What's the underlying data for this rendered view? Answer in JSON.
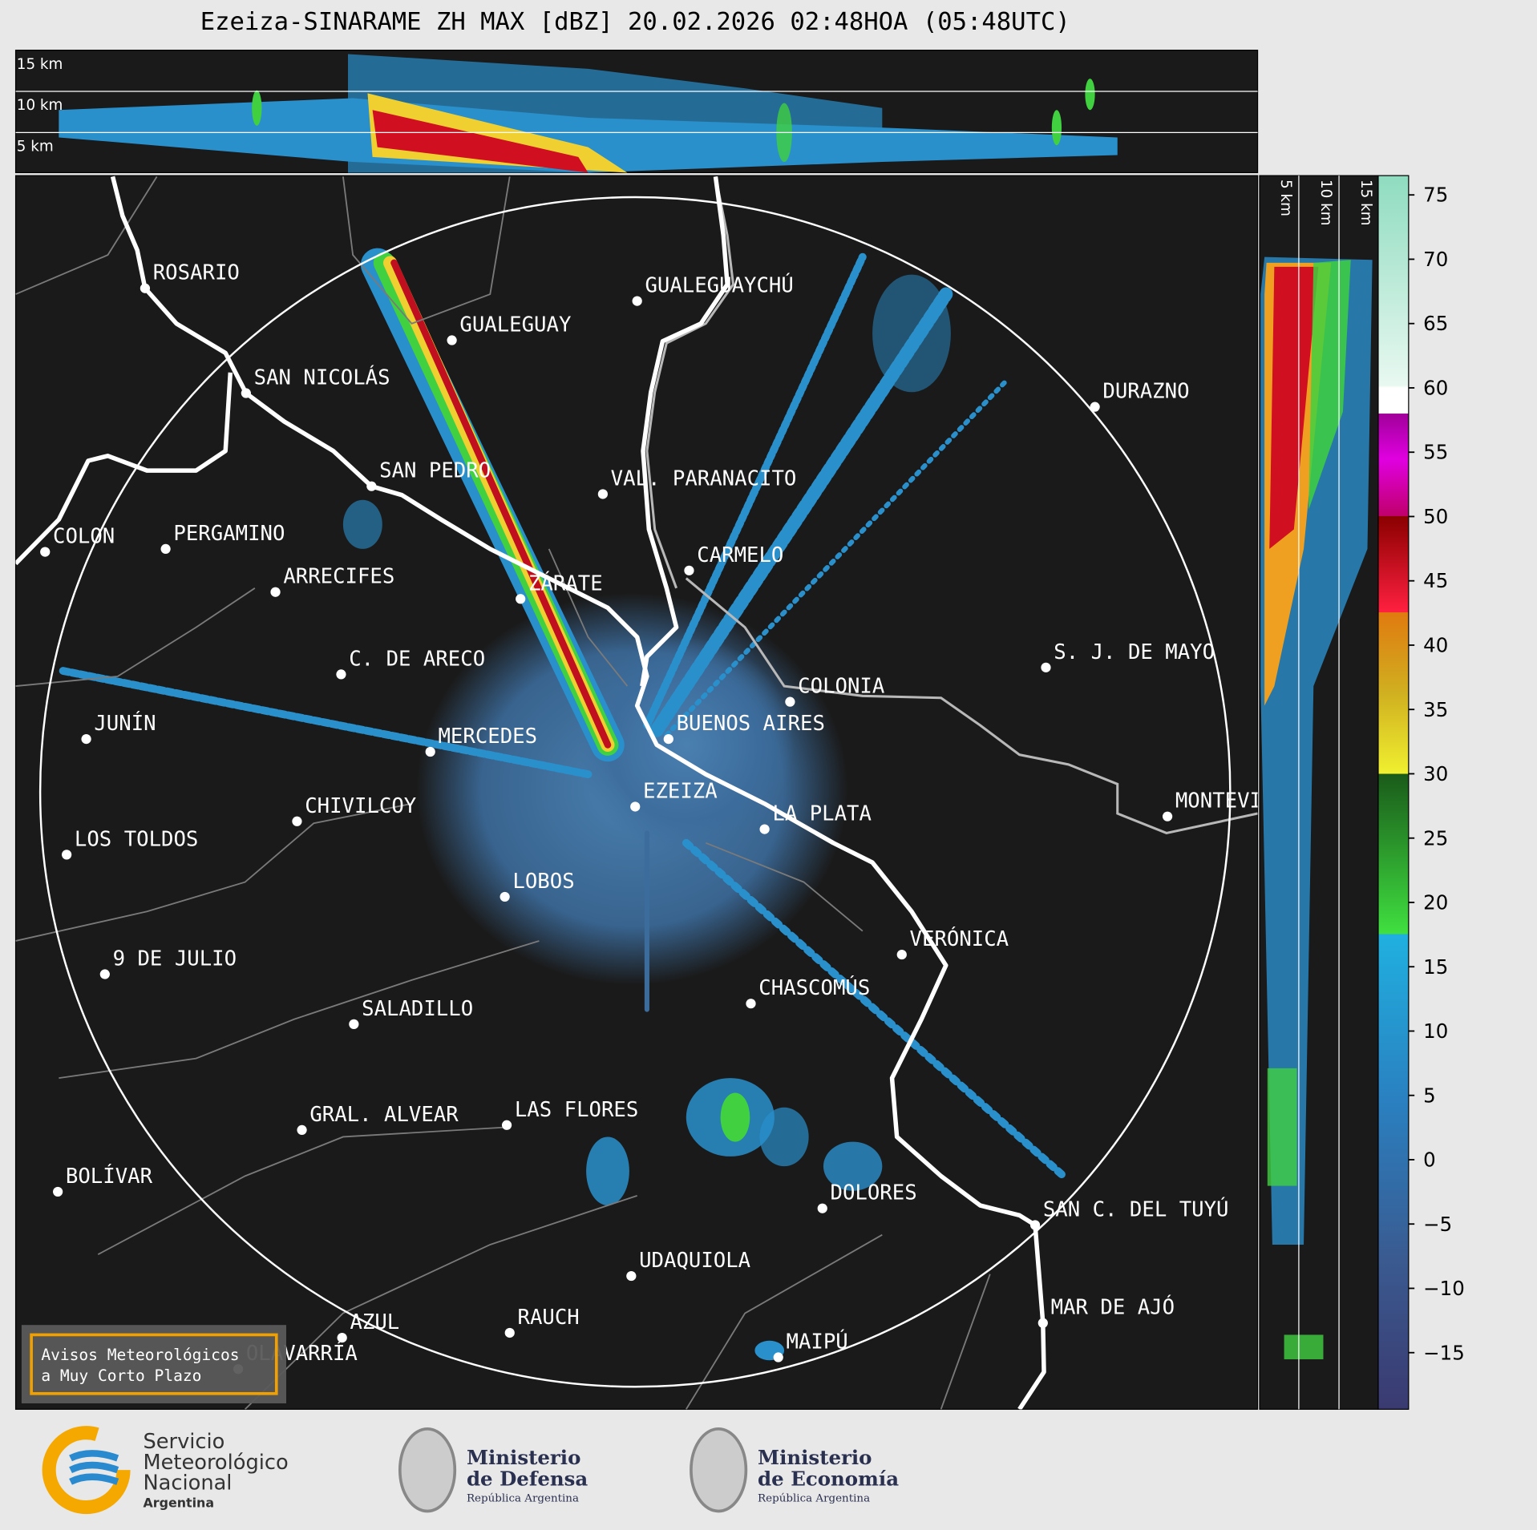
{
  "header": {
    "title": "Ezeiza-SINARAME ZH MAX [dBZ] 20.02.2026 02:48HOA (05:48UTC)"
  },
  "height_panels": {
    "top_labels": [
      "15 km",
      "10 km",
      "5 km"
    ],
    "side_labels": [
      "5 km",
      "10 km",
      "15 km"
    ]
  },
  "map": {
    "places": [
      "ROSARIO",
      "SAN NICOLÁS",
      "SAN PEDRO",
      "GUALEGUAY",
      "GUALEGUAYCHÚ",
      "VAL. PARANACITO",
      "DURAZNO",
      "COLON",
      "PERGAMINO",
      "ARRECIFES",
      "ZÁRATE",
      "CARMELO",
      "C. DE ARECO",
      "S. J. DE MAYO",
      "COLONIA",
      "JUNÍN",
      "MERCEDES",
      "BUENOS AIRES",
      "EZEIZA",
      "CHIVILCOY",
      "LA PLATA",
      "MONTEVIDEO",
      "LOS TOLDOS",
      "LOBOS",
      "VERÓNICA",
      "9 DE JULIO",
      "CHASCOMÚS",
      "SALADILLO",
      "GRAL. ALVEAR",
      "LAS FLORES",
      "BOLÍVAR",
      "DOLORES",
      "SAN C. DEL TUYÚ",
      "UDAQUIOLA",
      "MAR DE AJÓ",
      "RAUCH",
      "AZUL",
      "OLAVARRÍA",
      "MAIPÚ"
    ]
  },
  "warning_box": {
    "lines": [
      "Avisos Meteorológicos",
      "a Muy Corto Plazo"
    ]
  },
  "colorbar": {
    "range": [
      -19.4,
      76.5
    ],
    "ticks": [
      75,
      70,
      65,
      60,
      55,
      50,
      45,
      40,
      35,
      30,
      25,
      20,
      15,
      10,
      5,
      0,
      {
        "value": -5,
        "label": "−5"
      },
      {
        "value": -10,
        "label": "−10"
      },
      {
        "value": -15,
        "label": "−15"
      }
    ]
  },
  "footer": {
    "smn": [
      "Servicio",
      "Meteorológico",
      "Nacional",
      "Argentina"
    ],
    "defensa": [
      "Ministerio",
      "de Defensa",
      "República Argentina"
    ],
    "economia": [
      "Ministerio",
      "de Economía",
      "República Argentina"
    ]
  }
}
